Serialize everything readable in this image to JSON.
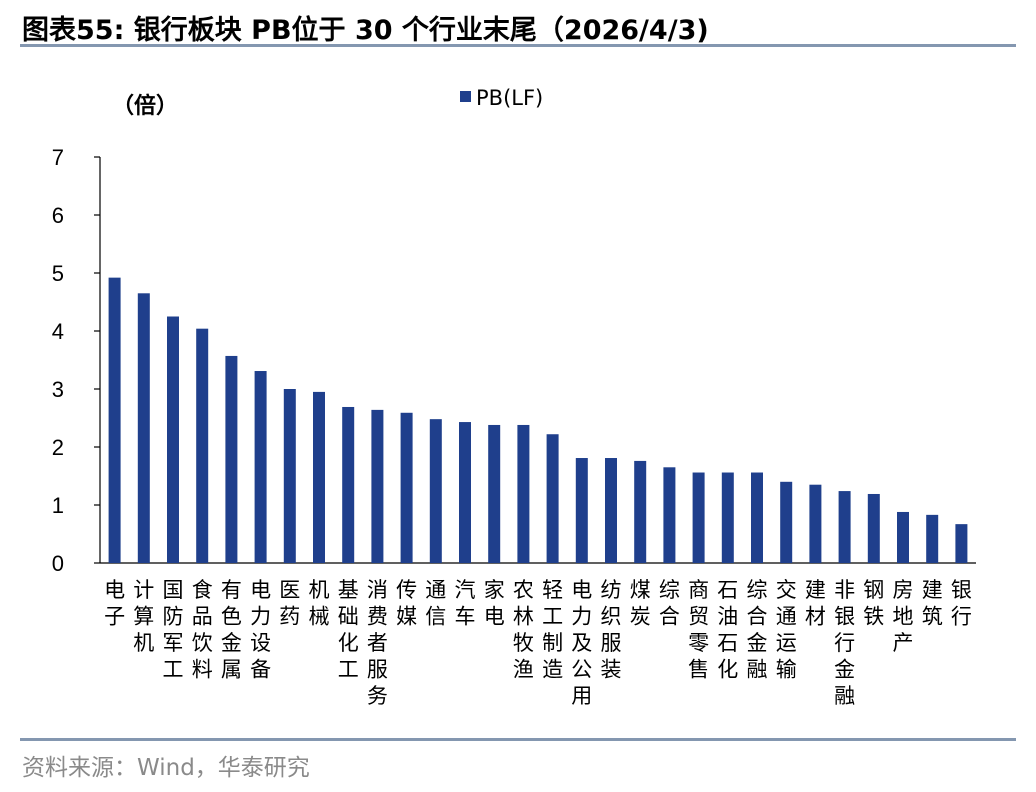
{
  "header": {
    "title": "图表55:  银行板块 PB位于 30 个行业末尾（2026/4/3)"
  },
  "footer": {
    "source": "资料来源：Wind，华泰研究"
  },
  "colors": {
    "bar": "#1f3f8c",
    "rule": "#8497b0"
  },
  "chart_data": {
    "type": "bar",
    "unit_label": "（倍）",
    "ylim": [
      0,
      7
    ],
    "yticks": [
      "0",
      "1",
      "2",
      "3",
      "4",
      "5",
      "6",
      "7"
    ],
    "legend": "PB(LF)",
    "legend_position": "top-center",
    "grid": false,
    "categories": [
      "电子",
      "计算机",
      "国防军工",
      "食品饮料",
      "有色金属",
      "电力设备",
      "医药",
      "机械",
      "基础化工",
      "消费者服务",
      "传媒",
      "通信",
      "汽车",
      "家电",
      "农林牧渔",
      "轻工制造",
      "电力及公用",
      "纺织服装",
      "煤炭",
      "综合",
      "商贸零售",
      "石油石化",
      "综合金融",
      "交通运输",
      "建材",
      "非银行金融",
      "钢铁",
      "房地产",
      "建筑",
      "银行"
    ],
    "series": [
      {
        "name": "PB(LF)",
        "values": [
          4.92,
          4.65,
          4.25,
          4.04,
          3.57,
          3.31,
          3.0,
          2.95,
          2.69,
          2.64,
          2.59,
          2.48,
          2.43,
          2.38,
          2.38,
          2.22,
          1.81,
          1.81,
          1.76,
          1.65,
          1.56,
          1.56,
          1.56,
          1.4,
          1.35,
          1.24,
          1.19,
          0.88,
          0.83,
          0.67
        ]
      }
    ]
  }
}
